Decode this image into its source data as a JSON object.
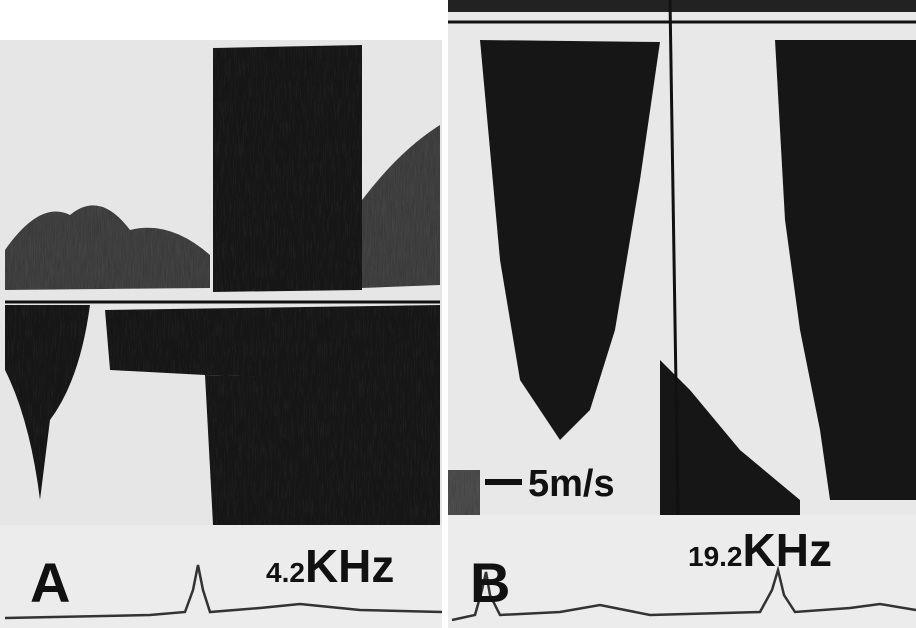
{
  "panels": [
    {
      "label": "A",
      "frequency": "4.2",
      "unit": "KHz"
    },
    {
      "label": "B",
      "frequency": "19.2",
      "unit": "KHz",
      "scale": "5m/s"
    }
  ]
}
